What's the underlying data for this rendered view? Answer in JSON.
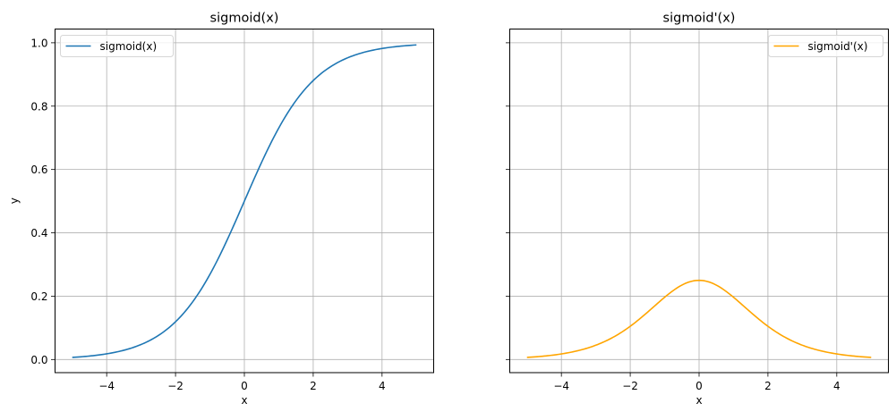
{
  "chart_data": [
    {
      "type": "line",
      "title": "sigmoid(x)",
      "xlabel": "x",
      "ylabel": "y",
      "xlim": [
        -5.5,
        5.5
      ],
      "ylim": [
        -0.0414,
        1.0434
      ],
      "xticks": [
        -4,
        -2,
        0,
        2,
        4
      ],
      "xtick_labels": [
        "−4",
        "−2",
        "0",
        "2",
        "4"
      ],
      "yticks": [
        0,
        0.2,
        0.4,
        0.6,
        0.8,
        1.0
      ],
      "ytick_labels": [
        "0.0",
        "0.2",
        "0.4",
        "0.6",
        "0.8",
        "1.0"
      ],
      "show_ytick_labels": true,
      "grid": true,
      "legend": "upper-left",
      "series": [
        {
          "name": "sigmoid(x)",
          "color": "#1f77b4",
          "function": "sigmoid",
          "x_range": [
            -5,
            5
          ],
          "x": [
            -5,
            -4,
            -3,
            -2,
            -1,
            0,
            1,
            2,
            3,
            4,
            5
          ],
          "y": [
            0.0067,
            0.018,
            0.047,
            0.119,
            0.269,
            0.5,
            0.731,
            0.881,
            0.953,
            0.982,
            0.9933
          ]
        }
      ]
    },
    {
      "type": "line",
      "title": "sigmoid'(x)",
      "xlabel": "x",
      "ylabel": "",
      "xlim": [
        -5.5,
        5.5
      ],
      "ylim": [
        -0.0414,
        1.0434
      ],
      "xticks": [
        -4,
        -2,
        0,
        2,
        4
      ],
      "xtick_labels": [
        "−4",
        "−2",
        "0",
        "2",
        "4"
      ],
      "yticks": [
        0,
        0.2,
        0.4,
        0.6,
        0.8,
        1.0
      ],
      "ytick_labels": [
        "",
        "",
        "",
        "",
        "",
        ""
      ],
      "show_ytick_labels": false,
      "grid": true,
      "legend": "upper-right",
      "series": [
        {
          "name": "sigmoid'(x)",
          "color": "#ffa500",
          "function": "sigmoid_derivative",
          "x_range": [
            -5,
            5
          ],
          "x": [
            -5,
            -4,
            -3,
            -2,
            -1,
            0,
            1,
            2,
            3,
            4,
            5
          ],
          "y": [
            0.0066,
            0.0177,
            0.0452,
            0.105,
            0.197,
            0.25,
            0.197,
            0.105,
            0.0452,
            0.0177,
            0.0066
          ]
        }
      ]
    }
  ]
}
